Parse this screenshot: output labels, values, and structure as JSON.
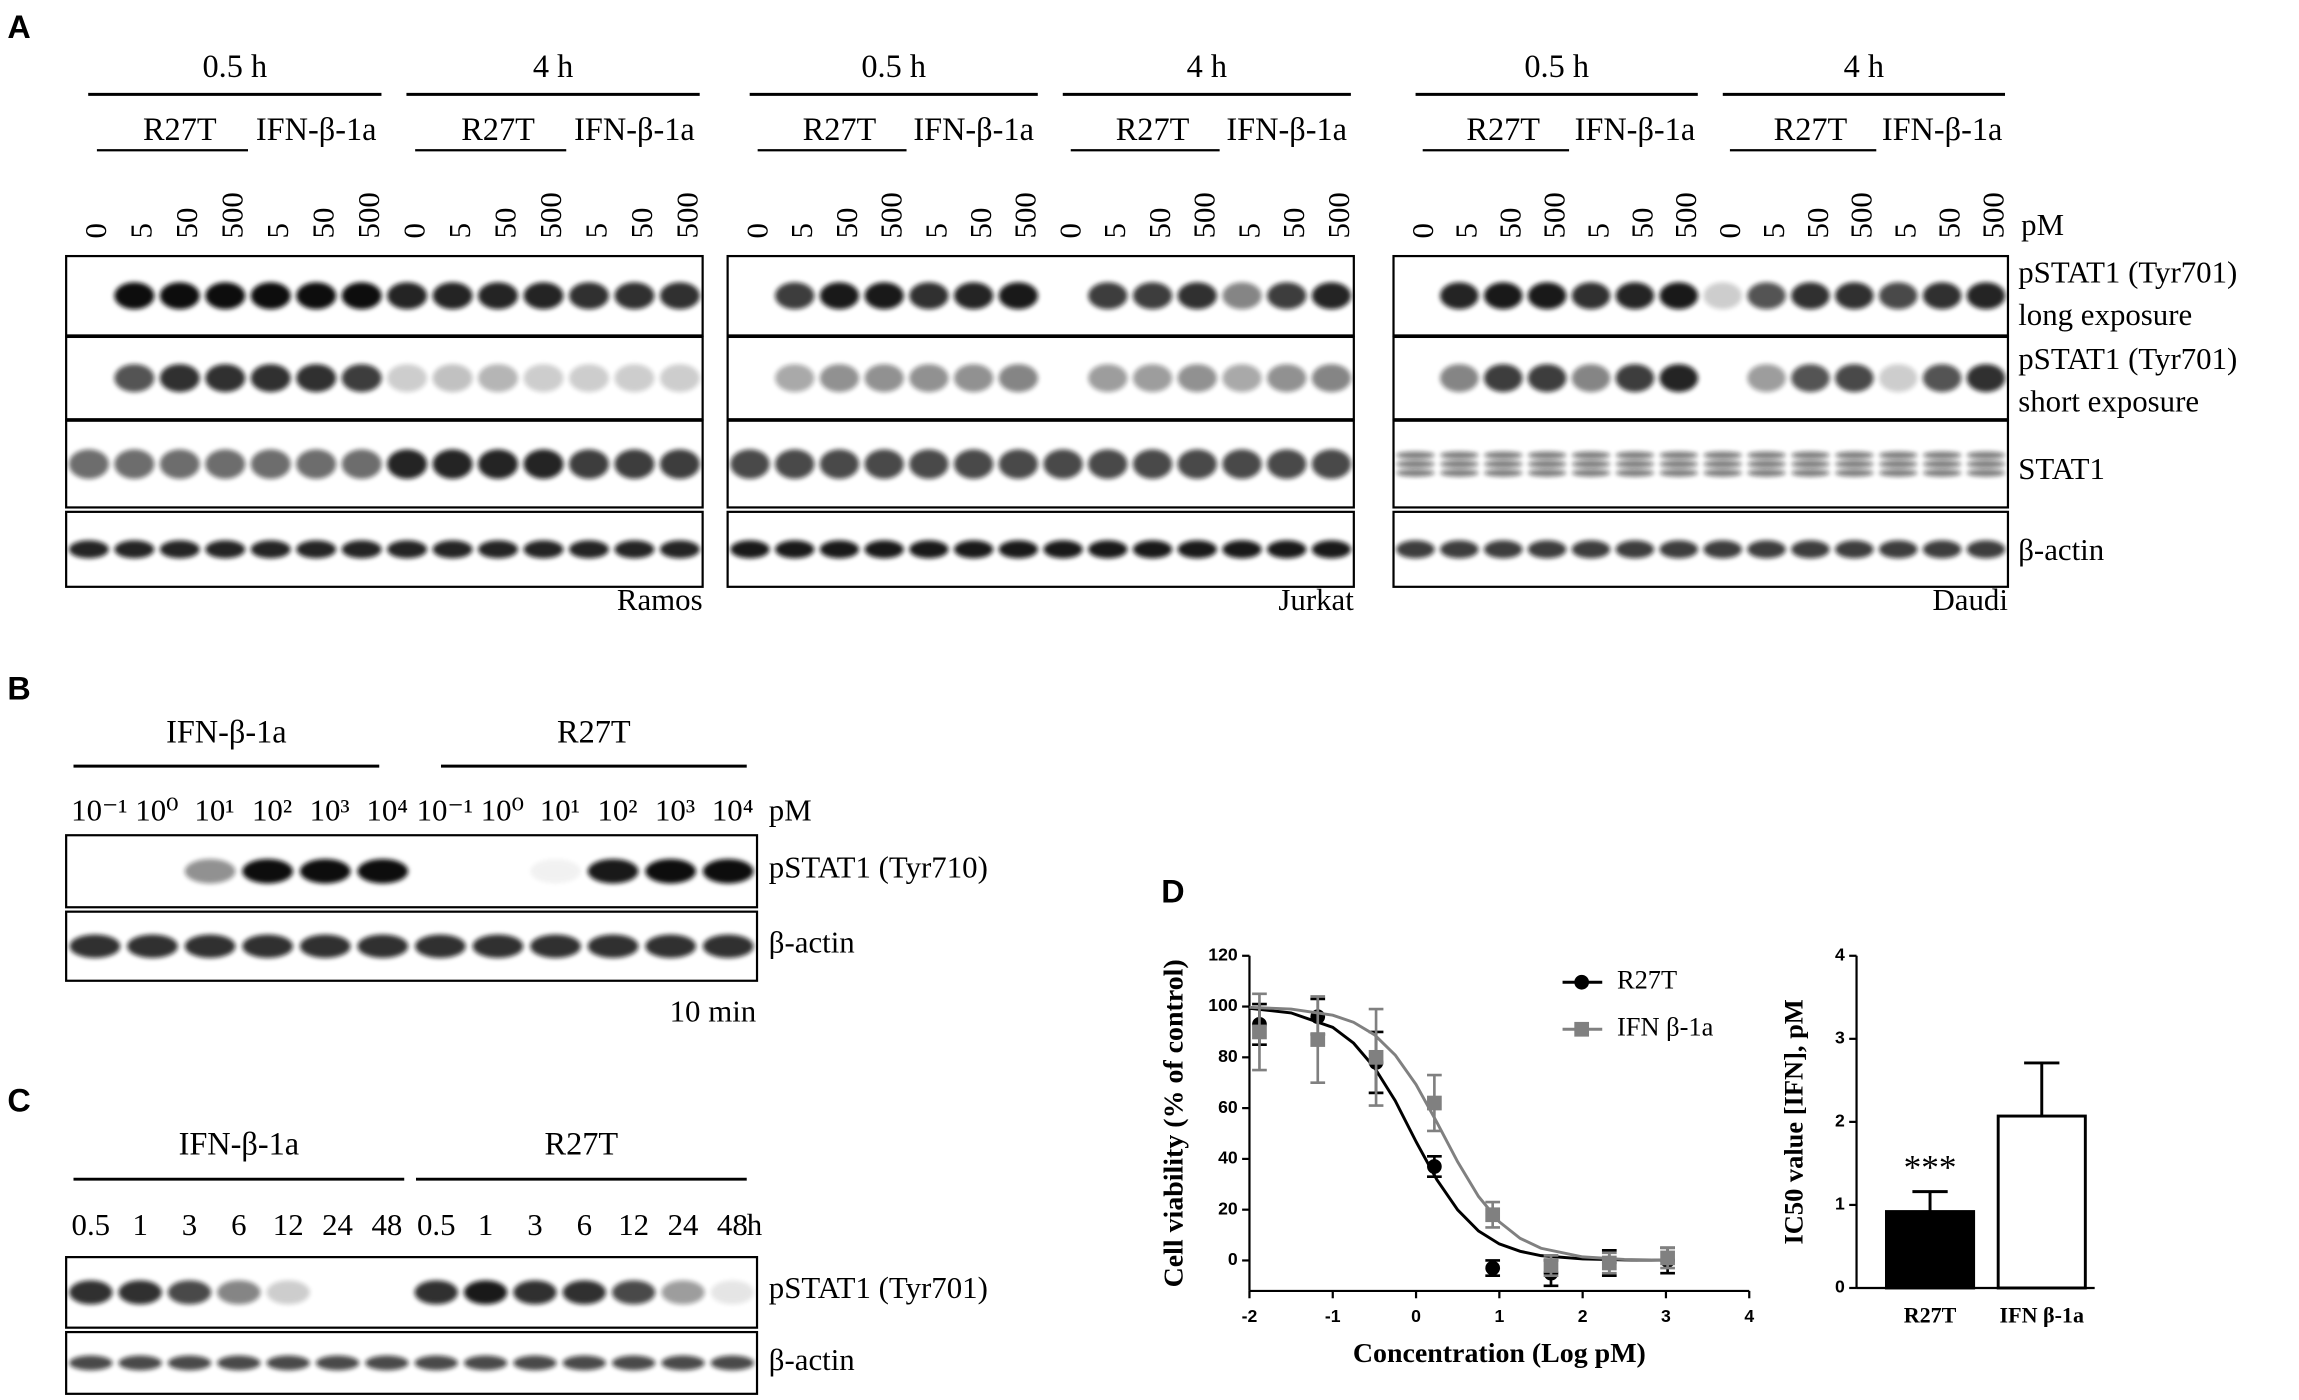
{
  "panel_a": {
    "label": "A",
    "times": [
      "0.5 h",
      "4 h"
    ],
    "treatments": [
      "R27T",
      "IFN-β-1a"
    ],
    "doses": [
      "0",
      "5",
      "50",
      "500",
      "5",
      "50",
      "500"
    ],
    "unit": "pM",
    "rows": [
      [
        "pSTAT1 (Tyr701)",
        "long exposure"
      ],
      [
        "pSTAT1 (Tyr701)",
        "short exposure"
      ],
      [
        "STAT1"
      ],
      [
        "β-actin"
      ]
    ],
    "cells": [
      "Ramos",
      "Jurkat",
      "Daudi"
    ]
  },
  "panel_b": {
    "label": "B",
    "groups": [
      "IFN-β-1a",
      "R27T"
    ],
    "doses": [
      "10⁻¹",
      "10⁰",
      "10¹",
      "10²",
      "10³",
      "10⁴"
    ],
    "unit": "pM",
    "rows": [
      "pSTAT1 (Tyr710)",
      "β-actin"
    ],
    "note": "10 min"
  },
  "panel_c": {
    "label": "C",
    "groups": [
      "IFN-β-1a",
      "R27T"
    ],
    "times": [
      "0.5",
      "1",
      "3",
      "6",
      "12",
      "24",
      "48"
    ],
    "unit": "h",
    "rows": [
      "pSTAT1 (Tyr701)",
      "β-actin"
    ]
  },
  "panel_d": {
    "label": "D",
    "chart_data": [
      {
        "type": "line",
        "xlabel": "Concentration (Log pM)",
        "ylabel": "Cell viability (% of control)",
        "xlim": [
          -2,
          4
        ],
        "xticks": [
          -2,
          -1,
          0,
          1,
          2,
          3,
          4
        ],
        "ylim": [
          -12,
          120
        ],
        "yticks": [
          0,
          20,
          40,
          60,
          80,
          100,
          120
        ],
        "legend": "upper right",
        "series": [
          {
            "name": "R27T",
            "color": "#000000",
            "marker": "circle",
            "x": [
              -1.88,
              -1.18,
              -0.48,
              0.22,
              0.92,
              1.62,
              2.32,
              3.02
            ],
            "values": [
              93,
              96,
              78,
              37,
              -3,
              -5,
              -1,
              0
            ],
            "errors": [
              8,
              7,
              12,
              4,
              3,
              5,
              5,
              5
            ],
            "fit_x": [
              -2,
              -1.5,
              -1,
              -0.75,
              -0.5,
              -0.25,
              0,
              0.25,
              0.5,
              0.75,
              1,
              1.25,
              1.5,
              2,
              2.5,
              3
            ],
            "fit_values": [
              99.3,
              97.5,
              91.8,
              85.6,
              76.0,
              62.9,
              46.8,
              31.8,
              19.9,
              11.6,
              6.5,
              3.6,
              1.9,
              0.6,
              0.2,
              0.1
            ]
          },
          {
            "name": "IFN β-1a",
            "color": "#808080",
            "marker": "square",
            "x": [
              -1.88,
              -1.18,
              -0.48,
              0.22,
              0.92,
              1.62,
              2.32,
              3.02
            ],
            "values": [
              90,
              87,
              80,
              62,
              18,
              -2,
              -1,
              1
            ],
            "errors": [
              15,
              17,
              19,
              11,
              5,
              4,
              4,
              4
            ],
            "fit_x": [
              -2,
              -1.5,
              -1,
              -0.75,
              -0.5,
              -0.25,
              0,
              0.25,
              0.5,
              0.75,
              1,
              1.25,
              1.5,
              2,
              2.5,
              3
            ],
            "fit_values": [
              99.7,
              99.0,
              96.6,
              93.8,
              88.9,
              80.9,
              69.3,
              54.4,
              38.8,
              25.2,
              15.2,
              8.7,
              4.8,
              1.4,
              0.4,
              0.1
            ]
          }
        ]
      },
      {
        "type": "bar",
        "ylabel": "IC50 value [IFN], pM",
        "categories": [
          "R27T",
          "IFN β-1a"
        ],
        "values": [
          0.92,
          2.07
        ],
        "errors": [
          0.24,
          0.64
        ],
        "colors": [
          "#000000",
          "#ffffff"
        ],
        "ylim": [
          0,
          4
        ],
        "yticks": [
          0,
          1,
          2,
          3,
          4
        ],
        "annotations": [
          {
            "category": "R27T",
            "text": "***"
          }
        ]
      }
    ]
  }
}
